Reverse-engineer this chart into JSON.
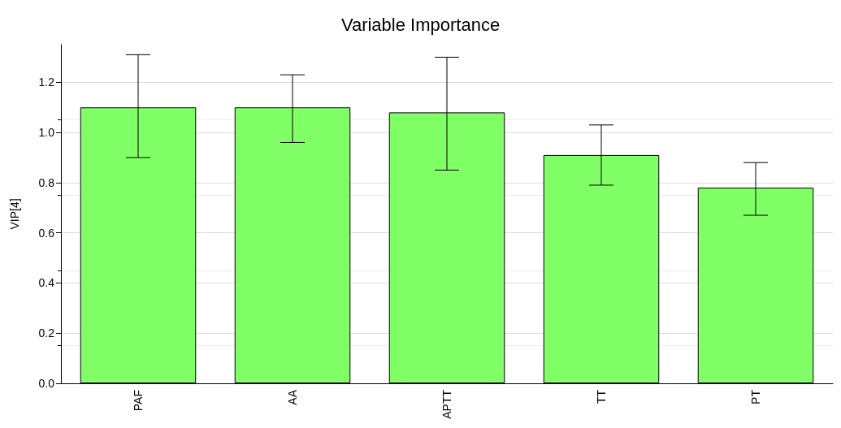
{
  "chart_data": {
    "type": "bar",
    "title": "Variable Importance",
    "ylabel": "VIP[4]",
    "categories": [
      "PAF",
      "AA",
      "APTT",
      "TT",
      "PT"
    ],
    "values": [
      1.1,
      1.1,
      1.08,
      0.91,
      0.78
    ],
    "errors": [
      [
        0.9,
        1.31
      ],
      [
        0.96,
        1.23
      ],
      [
        0.85,
        1.3
      ],
      [
        0.79,
        1.03
      ],
      [
        0.67,
        0.88
      ]
    ],
    "color": "#80ff66",
    "ylim": [
      0,
      1.35
    ],
    "yticks": [
      {
        "value": 0,
        "label": "0.0"
      },
      {
        "value": 0.2,
        "label": "0.2"
      },
      {
        "value": 0.4,
        "label": "0.4"
      },
      {
        "value": 0.6,
        "label": "0.6"
      },
      {
        "value": 0.8,
        "label": "0.8"
      },
      {
        "value": 1.0,
        "label": "1.0"
      },
      {
        "value": 1.2,
        "label": "1.2"
      }
    ],
    "grid": "y"
  }
}
